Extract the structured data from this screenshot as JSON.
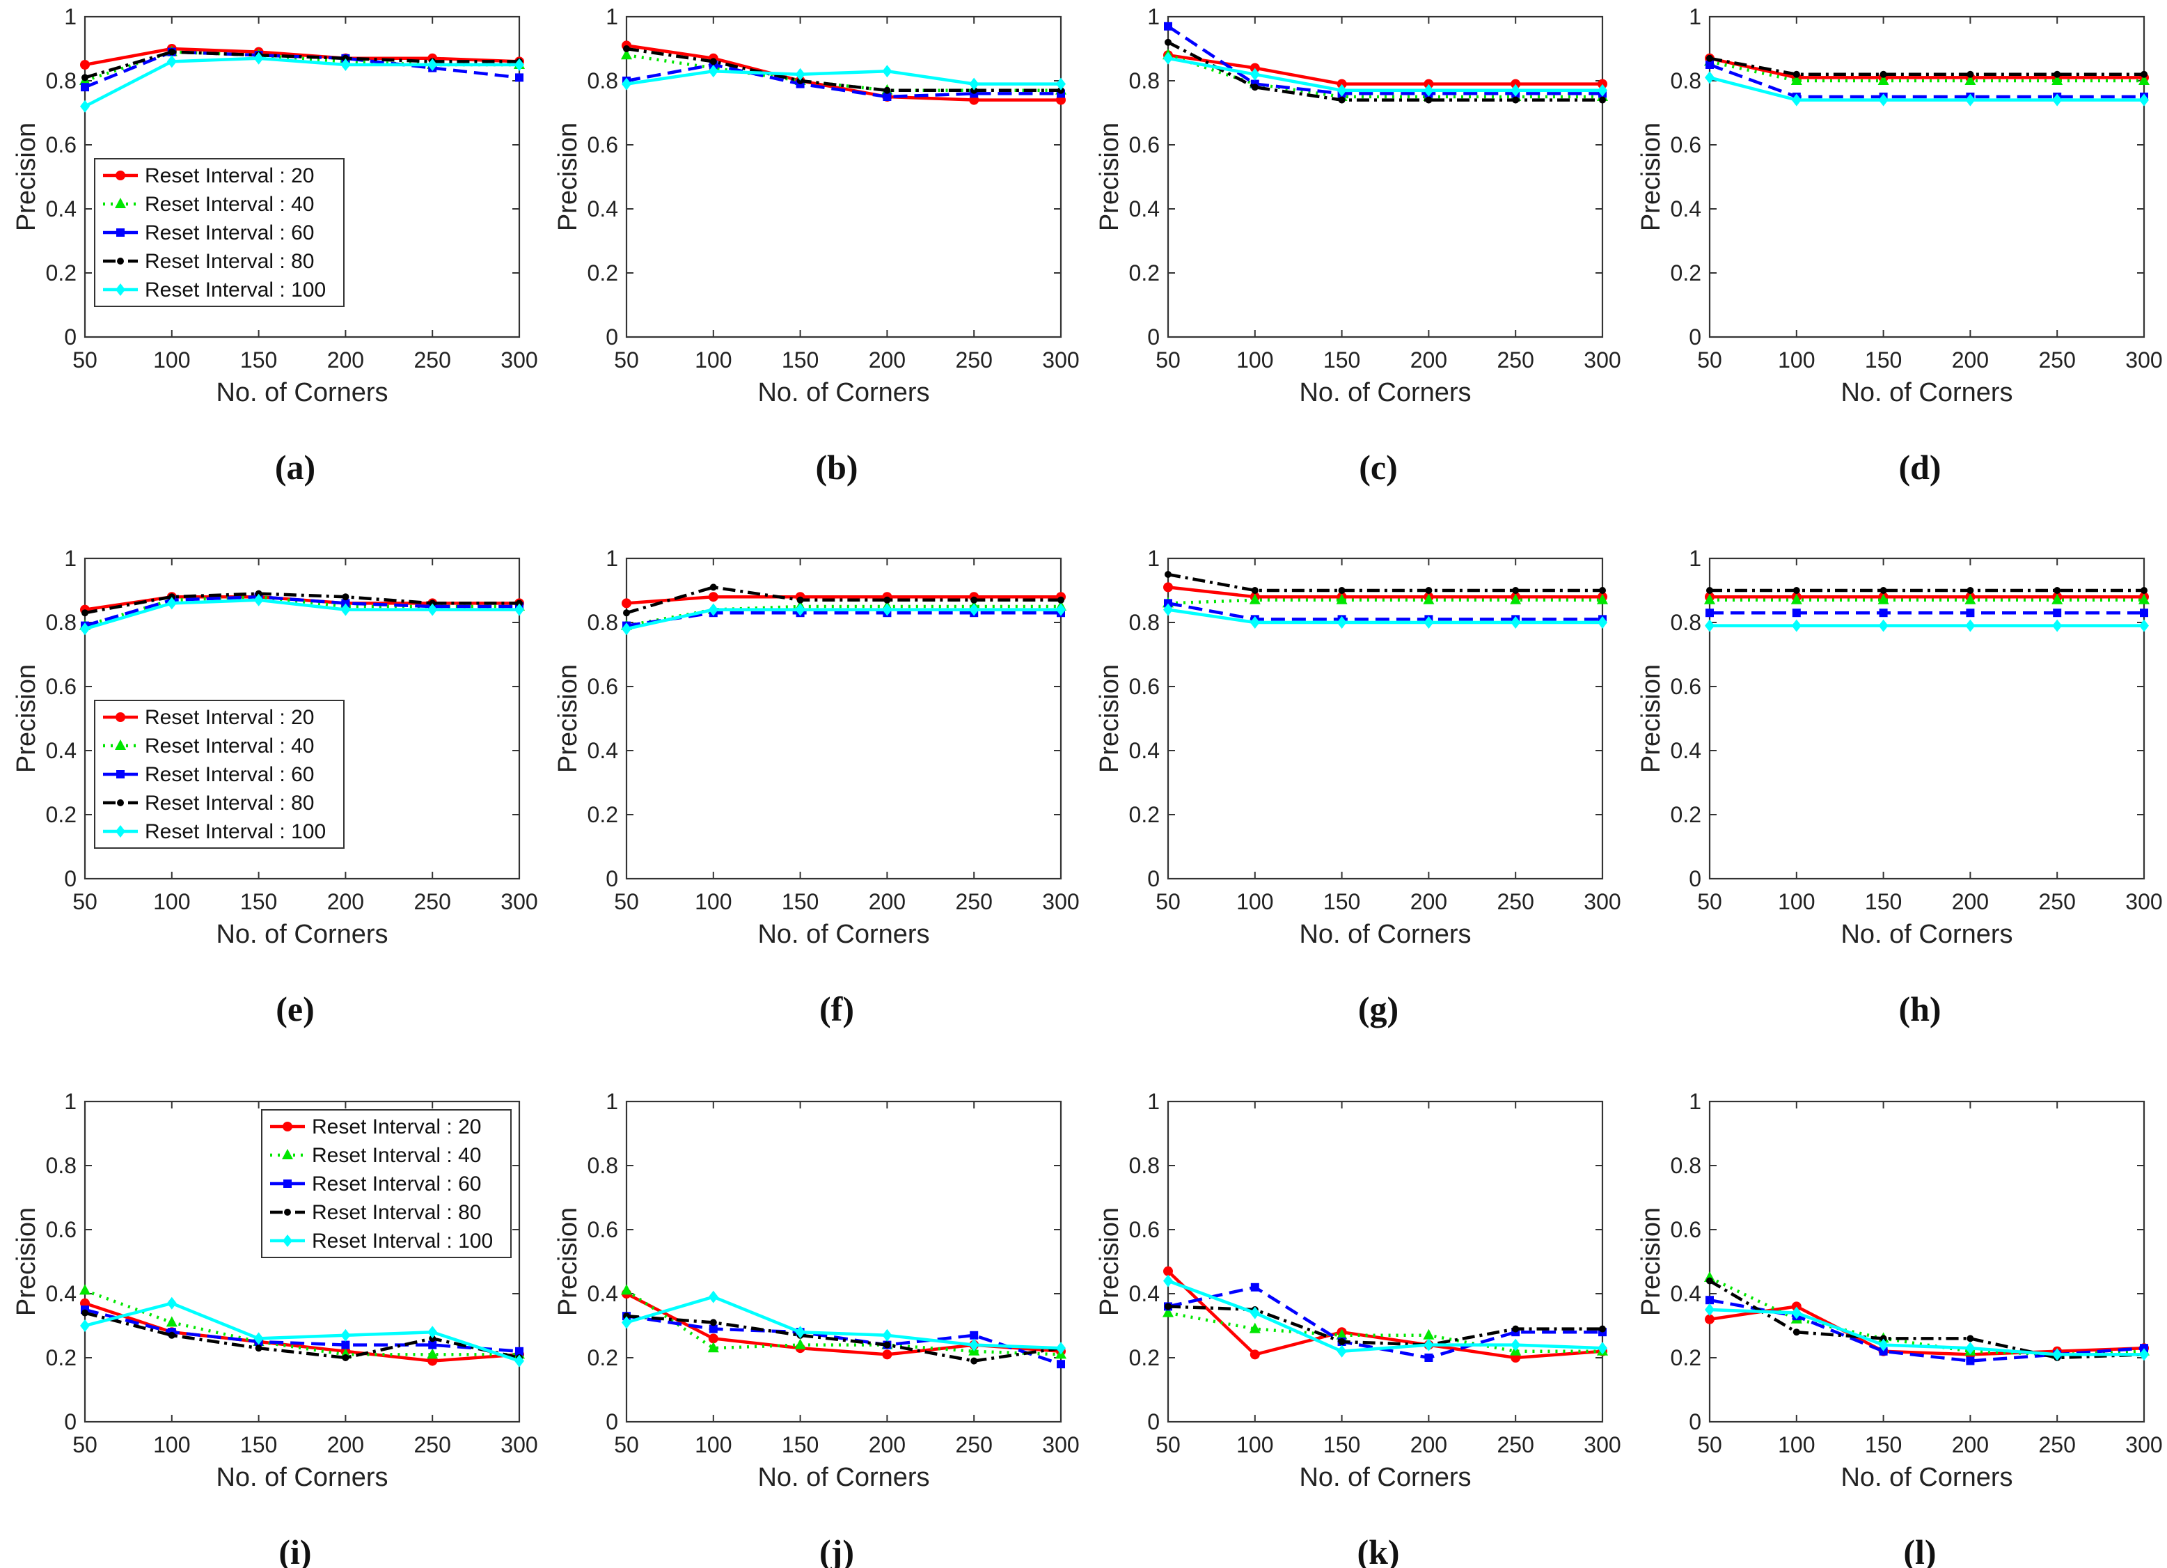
{
  "figure": {
    "colors": {
      "s20": "#ff0000",
      "s40": "#00e600",
      "s60": "#0000ff",
      "s80": "#000000",
      "s100": "#00ffff"
    },
    "styles": {
      "s20": "solid",
      "s40": "dotted",
      "s60": "dashed",
      "s80": "dashdot",
      "s100": "solid"
    },
    "markers": {
      "s20": "circle",
      "s40": "triangle",
      "s60": "square",
      "s80": "dot",
      "s100": "diamond"
    }
  },
  "chart_data": [
    {
      "type": "line",
      "caption": "(a)",
      "xlabel": "No. of Corners",
      "ylabel": "Precision",
      "x": [
        50,
        100,
        150,
        200,
        250,
        300
      ],
      "xlim": [
        50,
        300
      ],
      "ylim": [
        0,
        1
      ],
      "xticks": [
        "50",
        "100",
        "150",
        "200",
        "250",
        "300"
      ],
      "yticks": [
        "0",
        "0.2",
        "0.4",
        "0.6",
        "0.8",
        "1"
      ],
      "legend": "left-middle",
      "series": [
        {
          "name": "Reset Interval : 20",
          "values": [
            0.85,
            0.9,
            0.89,
            0.87,
            0.87,
            0.86
          ]
        },
        {
          "name": "Reset Interval : 40",
          "values": [
            0.8,
            0.89,
            0.88,
            0.86,
            0.85,
            0.85
          ]
        },
        {
          "name": "Reset Interval : 60",
          "values": [
            0.78,
            0.89,
            0.88,
            0.87,
            0.84,
            0.81
          ]
        },
        {
          "name": "Reset Interval : 80",
          "values": [
            0.81,
            0.89,
            0.88,
            0.87,
            0.86,
            0.86
          ]
        },
        {
          "name": "Reset Interval : 100",
          "values": [
            0.72,
            0.86,
            0.87,
            0.85,
            0.85,
            0.85
          ]
        }
      ]
    },
    {
      "type": "line",
      "caption": "(b)",
      "xlabel": "No. of Corners",
      "ylabel": "Precision",
      "x": [
        50,
        100,
        150,
        200,
        250,
        300
      ],
      "xlim": [
        50,
        300
      ],
      "ylim": [
        0,
        1
      ],
      "xticks": [
        "50",
        "100",
        "150",
        "200",
        "250",
        "300"
      ],
      "yticks": [
        "0",
        "0.2",
        "0.4",
        "0.6",
        "0.8",
        "1"
      ],
      "legend": "none",
      "series": [
        {
          "values": [
            0.91,
            0.87,
            0.8,
            0.75,
            0.74,
            0.74
          ]
        },
        {
          "values": [
            0.88,
            0.84,
            0.8,
            0.77,
            0.77,
            0.77
          ]
        },
        {
          "values": [
            0.8,
            0.85,
            0.79,
            0.75,
            0.76,
            0.76
          ]
        },
        {
          "values": [
            0.9,
            0.86,
            0.8,
            0.77,
            0.77,
            0.77
          ]
        },
        {
          "values": [
            0.79,
            0.83,
            0.82,
            0.83,
            0.79,
            0.79
          ]
        }
      ]
    },
    {
      "type": "line",
      "caption": "(c)",
      "xlabel": "No. of Corners",
      "ylabel": "Precision",
      "x": [
        50,
        100,
        150,
        200,
        250,
        300
      ],
      "xlim": [
        50,
        300
      ],
      "ylim": [
        0,
        1
      ],
      "xticks": [
        "50",
        "100",
        "150",
        "200",
        "250",
        "300"
      ],
      "yticks": [
        "0",
        "0.2",
        "0.4",
        "0.6",
        "0.8",
        "1"
      ],
      "legend": "none",
      "series": [
        {
          "values": [
            0.88,
            0.84,
            0.79,
            0.79,
            0.79,
            0.79
          ]
        },
        {
          "values": [
            0.88,
            0.79,
            0.75,
            0.75,
            0.75,
            0.75
          ]
        },
        {
          "values": [
            0.97,
            0.79,
            0.76,
            0.76,
            0.76,
            0.76
          ]
        },
        {
          "values": [
            0.92,
            0.78,
            0.74,
            0.74,
            0.74,
            0.74
          ]
        },
        {
          "values": [
            0.87,
            0.82,
            0.77,
            0.77,
            0.77,
            0.77
          ]
        }
      ]
    },
    {
      "type": "line",
      "caption": "(d)",
      "xlabel": "No. of Corners",
      "ylabel": "Precision",
      "x": [
        50,
        100,
        150,
        200,
        250,
        300
      ],
      "xlim": [
        50,
        300
      ],
      "ylim": [
        0,
        1
      ],
      "xticks": [
        "50",
        "100",
        "150",
        "200",
        "250",
        "300"
      ],
      "yticks": [
        "0",
        "0.2",
        "0.4",
        "0.6",
        "0.8",
        "1"
      ],
      "legend": "none",
      "series": [
        {
          "values": [
            0.87,
            0.81,
            0.81,
            0.81,
            0.81,
            0.81
          ]
        },
        {
          "values": [
            0.86,
            0.8,
            0.8,
            0.8,
            0.8,
            0.8
          ]
        },
        {
          "values": [
            0.85,
            0.75,
            0.75,
            0.75,
            0.75,
            0.75
          ]
        },
        {
          "values": [
            0.87,
            0.82,
            0.82,
            0.82,
            0.82,
            0.82
          ]
        },
        {
          "values": [
            0.81,
            0.74,
            0.74,
            0.74,
            0.74,
            0.74
          ]
        }
      ]
    },
    {
      "type": "line",
      "caption": "(e)",
      "xlabel": "No. of Corners",
      "ylabel": "Precision",
      "x": [
        50,
        100,
        150,
        200,
        250,
        300
      ],
      "xlim": [
        50,
        300
      ],
      "ylim": [
        0,
        1
      ],
      "xticks": [
        "50",
        "100",
        "150",
        "200",
        "250",
        "300"
      ],
      "yticks": [
        "0",
        "0.2",
        "0.4",
        "0.6",
        "0.8",
        "1"
      ],
      "legend": "left-middle",
      "series": [
        {
          "name": "Reset Interval : 20",
          "values": [
            0.84,
            0.88,
            0.88,
            0.86,
            0.86,
            0.86
          ]
        },
        {
          "name": "Reset Interval : 40",
          "values": [
            0.79,
            0.87,
            0.88,
            0.85,
            0.85,
            0.85
          ]
        },
        {
          "name": "Reset Interval : 60",
          "values": [
            0.79,
            0.87,
            0.88,
            0.86,
            0.85,
            0.85
          ]
        },
        {
          "name": "Reset Interval : 80",
          "values": [
            0.83,
            0.88,
            0.89,
            0.88,
            0.86,
            0.86
          ]
        },
        {
          "name": "Reset Interval : 100",
          "values": [
            0.78,
            0.86,
            0.87,
            0.84,
            0.84,
            0.84
          ]
        }
      ]
    },
    {
      "type": "line",
      "caption": "(f)",
      "xlabel": "No. of Corners",
      "ylabel": "Precision",
      "x": [
        50,
        100,
        150,
        200,
        250,
        300
      ],
      "xlim": [
        50,
        300
      ],
      "ylim": [
        0,
        1
      ],
      "xticks": [
        "50",
        "100",
        "150",
        "200",
        "250",
        "300"
      ],
      "yticks": [
        "0",
        "0.2",
        "0.4",
        "0.6",
        "0.8",
        "1"
      ],
      "legend": "none",
      "series": [
        {
          "values": [
            0.86,
            0.88,
            0.88,
            0.88,
            0.88,
            0.88
          ]
        },
        {
          "values": [
            0.79,
            0.84,
            0.85,
            0.85,
            0.85,
            0.85
          ]
        },
        {
          "values": [
            0.79,
            0.83,
            0.83,
            0.83,
            0.83,
            0.83
          ]
        },
        {
          "values": [
            0.83,
            0.91,
            0.87,
            0.87,
            0.87,
            0.87
          ]
        },
        {
          "values": [
            0.78,
            0.84,
            0.84,
            0.84,
            0.84,
            0.84
          ]
        }
      ]
    },
    {
      "type": "line",
      "caption": "(g)",
      "xlabel": "No. of Corners",
      "ylabel": "Precision",
      "x": [
        50,
        100,
        150,
        200,
        250,
        300
      ],
      "xlim": [
        50,
        300
      ],
      "ylim": [
        0,
        1
      ],
      "xticks": [
        "50",
        "100",
        "150",
        "200",
        "250",
        "300"
      ],
      "yticks": [
        "0",
        "0.2",
        "0.4",
        "0.6",
        "0.8",
        "1"
      ],
      "legend": "none",
      "series": [
        {
          "values": [
            0.91,
            0.88,
            0.88,
            0.88,
            0.88,
            0.88
          ]
        },
        {
          "values": [
            0.86,
            0.87,
            0.87,
            0.87,
            0.87,
            0.87
          ]
        },
        {
          "values": [
            0.86,
            0.81,
            0.81,
            0.81,
            0.81,
            0.81
          ]
        },
        {
          "values": [
            0.95,
            0.9,
            0.9,
            0.9,
            0.9,
            0.9
          ]
        },
        {
          "values": [
            0.84,
            0.8,
            0.8,
            0.8,
            0.8,
            0.8
          ]
        }
      ]
    },
    {
      "type": "line",
      "caption": "(h)",
      "xlabel": "No. of Corners",
      "ylabel": "Precision",
      "x": [
        50,
        100,
        150,
        200,
        250,
        300
      ],
      "xlim": [
        50,
        300
      ],
      "ylim": [
        0,
        1
      ],
      "xticks": [
        "50",
        "100",
        "150",
        "200",
        "250",
        "300"
      ],
      "yticks": [
        "0",
        "0.2",
        "0.4",
        "0.6",
        "0.8",
        "1"
      ],
      "legend": "none",
      "series": [
        {
          "values": [
            0.88,
            0.88,
            0.88,
            0.88,
            0.88,
            0.88
          ]
        },
        {
          "values": [
            0.87,
            0.87,
            0.87,
            0.87,
            0.87,
            0.87
          ]
        },
        {
          "values": [
            0.83,
            0.83,
            0.83,
            0.83,
            0.83,
            0.83
          ]
        },
        {
          "values": [
            0.9,
            0.9,
            0.9,
            0.9,
            0.9,
            0.9
          ]
        },
        {
          "values": [
            0.79,
            0.79,
            0.79,
            0.79,
            0.79,
            0.79
          ]
        }
      ]
    },
    {
      "type": "line",
      "caption": "(i)",
      "xlabel": "No. of Corners",
      "ylabel": "Precision",
      "x": [
        50,
        100,
        150,
        200,
        250,
        300
      ],
      "xlim": [
        50,
        300
      ],
      "ylim": [
        0,
        1
      ],
      "xticks": [
        "50",
        "100",
        "150",
        "200",
        "250",
        "300"
      ],
      "yticks": [
        "0",
        "0.2",
        "0.4",
        "0.6",
        "0.8",
        "1"
      ],
      "legend": "top-right",
      "series": [
        {
          "name": "Reset Interval : 20",
          "values": [
            0.37,
            0.28,
            0.25,
            0.22,
            0.19,
            0.21
          ]
        },
        {
          "name": "Reset Interval : 40",
          "values": [
            0.41,
            0.31,
            0.25,
            0.21,
            0.21,
            0.21
          ]
        },
        {
          "name": "Reset Interval : 60",
          "values": [
            0.35,
            0.28,
            0.25,
            0.24,
            0.24,
            0.22
          ]
        },
        {
          "name": "Reset Interval : 80",
          "values": [
            0.34,
            0.27,
            0.23,
            0.2,
            0.26,
            0.2
          ]
        },
        {
          "name": "Reset Interval : 100",
          "values": [
            0.3,
            0.37,
            0.26,
            0.27,
            0.28,
            0.19
          ]
        }
      ]
    },
    {
      "type": "line",
      "caption": "(j)",
      "xlabel": "No. of Corners",
      "ylabel": "Precision",
      "x": [
        50,
        100,
        150,
        200,
        250,
        300
      ],
      "xlim": [
        50,
        300
      ],
      "ylim": [
        0,
        1
      ],
      "xticks": [
        "50",
        "100",
        "150",
        "200",
        "250",
        "300"
      ],
      "yticks": [
        "0",
        "0.2",
        "0.4",
        "0.6",
        "0.8",
        "1"
      ],
      "legend": "none",
      "series": [
        {
          "values": [
            0.4,
            0.26,
            0.23,
            0.21,
            0.24,
            0.22
          ]
        },
        {
          "values": [
            0.41,
            0.23,
            0.24,
            0.24,
            0.22,
            0.21
          ]
        },
        {
          "values": [
            0.33,
            0.29,
            0.28,
            0.24,
            0.27,
            0.18
          ]
        },
        {
          "values": [
            0.33,
            0.31,
            0.27,
            0.24,
            0.19,
            0.23
          ]
        },
        {
          "values": [
            0.31,
            0.39,
            0.28,
            0.27,
            0.24,
            0.23
          ]
        }
      ]
    },
    {
      "type": "line",
      "caption": "(k)",
      "xlabel": "No. of Corners",
      "ylabel": "Precision",
      "x": [
        50,
        100,
        150,
        200,
        250,
        300
      ],
      "xlim": [
        50,
        300
      ],
      "ylim": [
        0,
        1
      ],
      "xticks": [
        "50",
        "100",
        "150",
        "200",
        "250",
        "300"
      ],
      "yticks": [
        "0",
        "0.2",
        "0.4",
        "0.6",
        "0.8",
        "1"
      ],
      "legend": "none",
      "series": [
        {
          "values": [
            0.47,
            0.21,
            0.28,
            0.24,
            0.2,
            0.22
          ]
        },
        {
          "values": [
            0.34,
            0.29,
            0.27,
            0.27,
            0.22,
            0.22
          ]
        },
        {
          "values": [
            0.36,
            0.42,
            0.25,
            0.2,
            0.28,
            0.28
          ]
        },
        {
          "values": [
            0.36,
            0.35,
            0.25,
            0.24,
            0.29,
            0.29
          ]
        },
        {
          "values": [
            0.44,
            0.34,
            0.22,
            0.24,
            0.24,
            0.23
          ]
        }
      ]
    },
    {
      "type": "line",
      "caption": "(l)",
      "xlabel": "No. of Corners",
      "ylabel": "Precision",
      "x": [
        50,
        100,
        150,
        200,
        250,
        300
      ],
      "xlim": [
        50,
        300
      ],
      "ylim": [
        0,
        1
      ],
      "xticks": [
        "50",
        "100",
        "150",
        "200",
        "250",
        "300"
      ],
      "yticks": [
        "0",
        "0.2",
        "0.4",
        "0.6",
        "0.8",
        "1"
      ],
      "legend": "none",
      "series": [
        {
          "values": [
            0.32,
            0.36,
            0.22,
            0.21,
            0.22,
            0.23
          ]
        },
        {
          "values": [
            0.45,
            0.32,
            0.26,
            0.22,
            0.21,
            0.22
          ]
        },
        {
          "values": [
            0.38,
            0.33,
            0.22,
            0.19,
            0.21,
            0.23
          ]
        },
        {
          "values": [
            0.44,
            0.28,
            0.26,
            0.26,
            0.2,
            0.21
          ]
        },
        {
          "values": [
            0.35,
            0.34,
            0.24,
            0.23,
            0.21,
            0.21
          ]
        }
      ]
    }
  ]
}
